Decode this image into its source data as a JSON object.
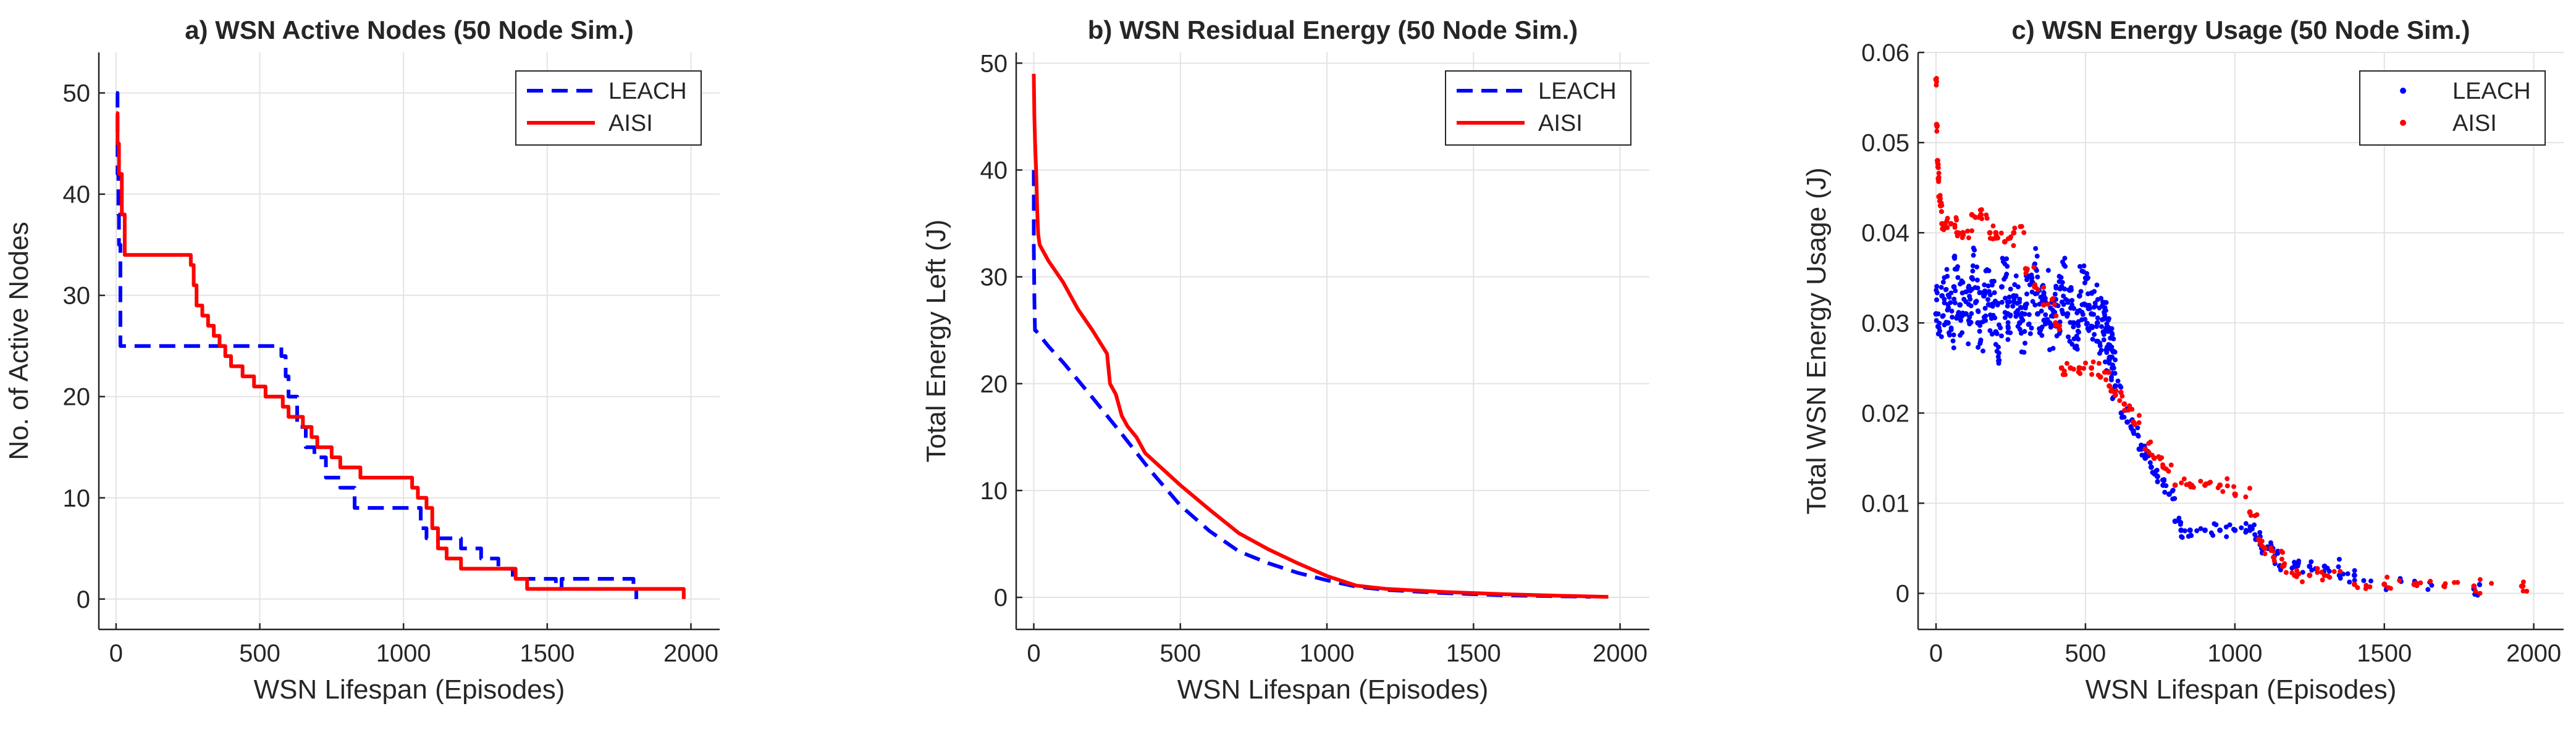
{
  "chart_data": [
    {
      "type": "line",
      "title": "a) WSN Active Nodes (50 Node Sim.)",
      "xlabel": "WSN Lifespan (Episodes)",
      "ylabel": "No. of Active Nodes",
      "xlim": [
        -60,
        2100
      ],
      "ylim": [
        -3,
        54
      ],
      "xticks": [
        0,
        500,
        1000,
        1500,
        2000
      ],
      "yticks": [
        0,
        10,
        20,
        30,
        40,
        50
      ],
      "grid": true,
      "legend_position": "top-right",
      "series": [
        {
          "name": "LEACH",
          "style": "dashed",
          "color": "#0000ff",
          "step": true,
          "x": [
            0,
            5,
            8,
            10,
            15,
            575,
            590,
            600,
            630,
            660,
            690,
            730,
            780,
            830,
            1000,
            1060,
            1080,
            1110,
            1200,
            1270,
            1330,
            1380,
            1530,
            1550,
            1800,
            1810
          ],
          "y": [
            50,
            42,
            38,
            35,
            25,
            24,
            22,
            20,
            17,
            15,
            14,
            12,
            11,
            9,
            9,
            7,
            6,
            6,
            5,
            4,
            3,
            2,
            1,
            2,
            1,
            0
          ]
        },
        {
          "name": "AISI",
          "style": "solid",
          "color": "#ff0000",
          "step": true,
          "x": [
            0,
            5,
            10,
            20,
            30,
            260,
            270,
            280,
            300,
            320,
            340,
            360,
            380,
            400,
            440,
            480,
            520,
            550,
            580,
            600,
            630,
            650,
            680,
            700,
            750,
            780,
            850,
            1000,
            1030,
            1050,
            1080,
            1100,
            1120,
            1150,
            1200,
            1350,
            1390,
            1430,
            1970,
            1975
          ],
          "y": [
            48,
            45,
            42,
            38,
            34,
            33,
            31,
            29,
            28,
            27,
            26,
            25,
            24,
            23,
            22,
            21,
            20,
            20,
            19,
            18,
            18,
            17,
            16,
            15,
            14,
            13,
            12,
            12,
            11,
            10,
            9,
            7,
            5,
            4,
            3,
            3,
            2,
            1,
            1,
            0
          ]
        }
      ]
    },
    {
      "type": "line",
      "title": "b) WSN Residual Energy (50 Node Sim.)",
      "xlabel": "WSN Lifespan (Episodes)",
      "ylabel": "Total Energy Left (J)",
      "xlim": [
        -60,
        2100
      ],
      "ylim": [
        -3,
        51
      ],
      "xticks": [
        0,
        500,
        1000,
        1500,
        2000
      ],
      "yticks": [
        0,
        10,
        20,
        30,
        40,
        50
      ],
      "grid": true,
      "legend_position": "top-right",
      "series": [
        {
          "name": "LEACH",
          "style": "dashed",
          "color": "#0000ff",
          "x": [
            0,
            0,
            2,
            4,
            6,
            50,
            100,
            200,
            300,
            400,
            500,
            600,
            700,
            800,
            900,
            1000,
            1100,
            1200,
            1400,
            1600,
            1800,
            1900
          ],
          "y": [
            40,
            33,
            28,
            25,
            25,
            23.5,
            22,
            18.7,
            15.3,
            11.8,
            8.6,
            6.2,
            4.3,
            3.2,
            2.3,
            1.6,
            1.0,
            0.7,
            0.4,
            0.2,
            0.1,
            0.05
          ]
        },
        {
          "name": "AISI",
          "style": "solid",
          "color": "#ff0000",
          "x": [
            0,
            2,
            5,
            8,
            10,
            12,
            15,
            20,
            50,
            100,
            150,
            200,
            250,
            260,
            280,
            300,
            320,
            350,
            380,
            400,
            500,
            600,
            700,
            800,
            900,
            1000,
            1100,
            1200,
            1400,
            1600,
            1800,
            1960
          ],
          "y": [
            49,
            45,
            42,
            40,
            38,
            36,
            34,
            33,
            31.5,
            29.5,
            27,
            25,
            22.8,
            20,
            19,
            17,
            16,
            15,
            13.5,
            13,
            10.5,
            8.2,
            6,
            4.5,
            3.2,
            2,
            1.1,
            0.8,
            0.5,
            0.3,
            0.15,
            0.05
          ]
        }
      ]
    },
    {
      "type": "scatter",
      "title": "c) WSN Energy Usage (50 Node Sim.)",
      "xlabel": "WSN Lifespan (Episodes)",
      "ylabel": "Total WSN Energy Usage (J)",
      "xlim": [
        -60,
        2100
      ],
      "ylim": [
        -0.004,
        0.06
      ],
      "xticks": [
        0,
        500,
        1000,
        1500,
        2000
      ],
      "yticks": [
        0,
        0.01,
        0.02,
        0.03,
        0.04,
        0.05,
        0.06
      ],
      "ytick_labels": [
        "0",
        "0.01",
        "0.02",
        "0.03",
        "0.04",
        "0.05",
        "0.06"
      ],
      "grid": true,
      "legend_position": "top-right",
      "series": [
        {
          "name": "LEACH",
          "marker": "dot",
          "color": "#0000ff",
          "x": [
            0,
            20,
            40,
            60,
            80,
            100,
            120,
            140,
            160,
            180,
            200,
            220,
            240,
            260,
            280,
            300,
            320,
            340,
            360,
            380,
            400,
            420,
            440,
            460,
            480,
            500,
            520,
            540,
            560,
            570,
            580,
            590,
            600,
            620,
            640,
            660,
            680,
            700,
            720,
            740,
            760,
            780,
            800,
            820,
            850,
            900,
            950,
            1000,
            1050,
            1070,
            1090,
            1110,
            1130,
            1150,
            1200,
            1250,
            1300,
            1350,
            1400,
            1500,
            1600,
            1800
          ],
          "y": [
            0.031,
            0.033,
            0.03,
            0.034,
            0.032,
            0.031,
            0.035,
            0.03,
            0.033,
            0.032,
            0.029,
            0.034,
            0.031,
            0.033,
            0.03,
            0.032,
            0.035,
            0.031,
            0.033,
            0.03,
            0.032,
            0.034,
            0.031,
            0.03,
            0.033,
            0.032,
            0.031,
            0.03,
            0.029,
            0.027,
            0.026,
            0.025,
            0.023,
            0.02,
            0.019,
            0.018,
            0.016,
            0.015,
            0.014,
            0.013,
            0.012,
            0.011,
            0.008,
            0.007,
            0.007,
            0.007,
            0.007,
            0.007,
            0.007,
            0.006,
            0.005,
            0.005,
            0.004,
            0.003,
            0.003,
            0.003,
            0.003,
            0.002,
            0.002,
            0.001,
            0.001,
            0.0005
          ]
        },
        {
          "name": "AISI",
          "marker": "dot",
          "color": "#ff0000",
          "x": [
            0,
            2,
            5,
            8,
            10,
            15,
            20,
            30,
            50,
            70,
            90,
            120,
            150,
            180,
            200,
            230,
            260,
            300,
            330,
            360,
            400,
            420,
            450,
            480,
            520,
            550,
            580,
            600,
            630,
            660,
            700,
            730,
            760,
            800,
            850,
            900,
            950,
            1000,
            1050,
            1080,
            1100,
            1130,
            1160,
            1200,
            1250,
            1300,
            1400,
            1500,
            1600,
            1700,
            1800,
            1960
          ],
          "y": [
            0.057,
            0.052,
            0.048,
            0.046,
            0.044,
            0.043,
            0.041,
            0.041,
            0.041,
            0.04,
            0.04,
            0.042,
            0.042,
            0.04,
            0.04,
            0.039,
            0.04,
            0.036,
            0.034,
            0.032,
            0.03,
            0.025,
            0.025,
            0.025,
            0.025,
            0.024,
            0.023,
            0.022,
            0.021,
            0.019,
            0.016,
            0.015,
            0.014,
            0.012,
            0.012,
            0.012,
            0.012,
            0.011,
            0.009,
            0.006,
            0.005,
            0.004,
            0.003,
            0.002,
            0.002,
            0.002,
            0.001,
            0.001,
            0.001,
            0.0008,
            0.0008,
            0.0008
          ]
        }
      ]
    }
  ]
}
